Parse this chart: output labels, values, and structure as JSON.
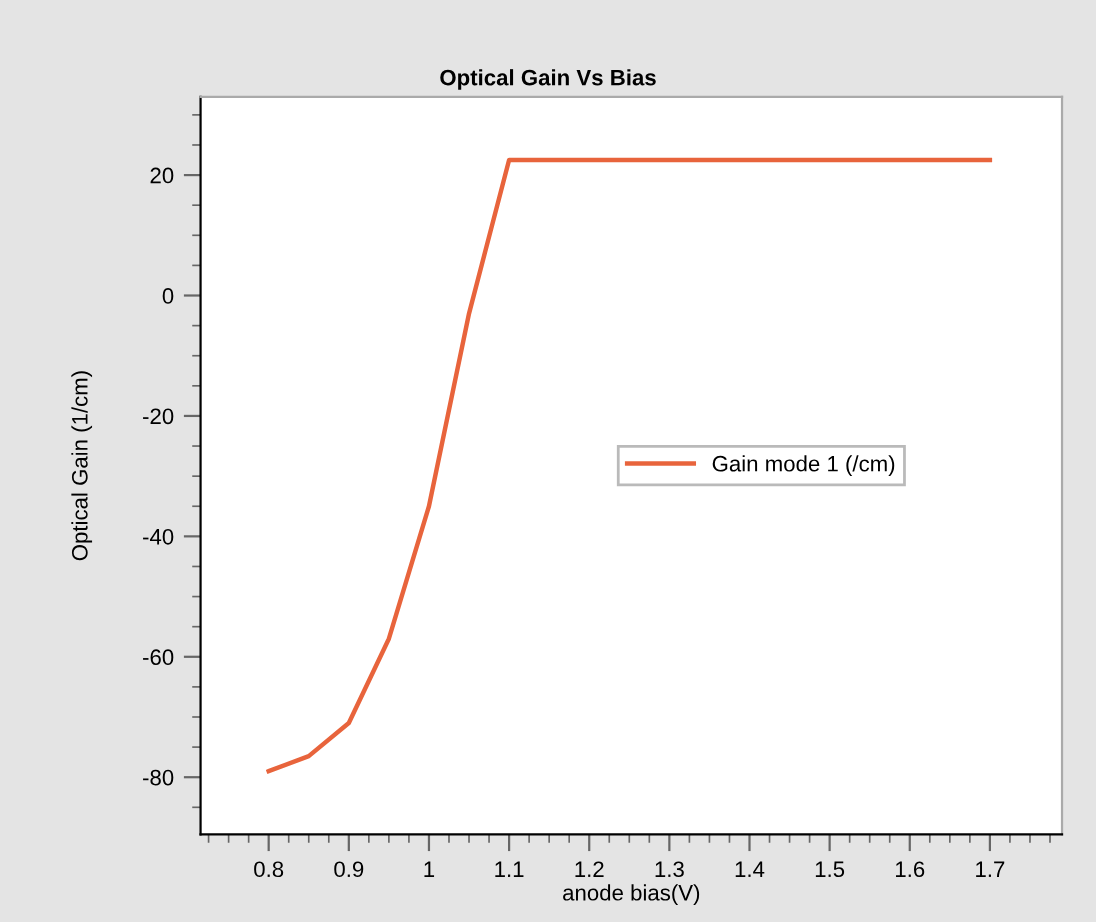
{
  "chart_data": {
    "type": "line",
    "title": "Optical Gain Vs Bias",
    "xlabel": "anode bias(V)",
    "ylabel": "Optical Gain (1/cm)",
    "x": [
      0.8,
      0.85,
      0.9,
      0.95,
      1.0,
      1.05,
      1.1,
      1.2,
      1.3,
      1.4,
      1.5,
      1.6,
      1.7
    ],
    "series": [
      {
        "name": "Gain mode 1 (/cm)",
        "color": "#e8643c",
        "values": [
          -79,
          -76.5,
          -71,
          -57,
          -35,
          -3,
          22.5,
          22.5,
          22.5,
          22.5,
          22.5,
          22.5,
          22.5
        ]
      }
    ],
    "xlim": [
      0.715,
      1.79
    ],
    "xticks": [
      0.8,
      0.9,
      1,
      1.1,
      1.2,
      1.3,
      1.4,
      1.5,
      1.6,
      1.7
    ],
    "ylim": [
      -89.5,
      33
    ],
    "yticks": [
      -80,
      -60,
      -40,
      -20,
      0,
      20
    ],
    "grid": false,
    "legend": "right",
    "marker": "none",
    "line_style": "solid"
  }
}
